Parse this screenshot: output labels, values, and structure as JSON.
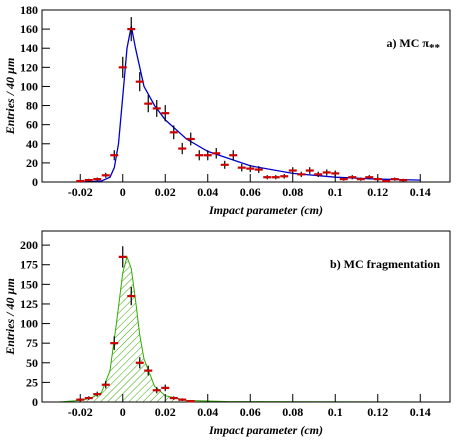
{
  "chart_data": [
    {
      "type": "scatter",
      "annotation": "a) MC π",
      "annotation_sub": "**",
      "xlabel": "Impact parameter (cm)",
      "ylabel": "Entries / 40 µm",
      "xlim": [
        -0.038,
        0.154
      ],
      "ylim": [
        0,
        180
      ],
      "xticks": [
        -0.02,
        0,
        0.02,
        0.04,
        0.06,
        0.08,
        0.1,
        0.12,
        0.14
      ],
      "yticks": [
        0,
        20,
        40,
        60,
        80,
        100,
        120,
        140,
        160,
        180
      ],
      "color": "#cc0000",
      "x": [
        -0.02,
        -0.016,
        -0.012,
        -0.008,
        -0.004,
        0.0,
        0.004,
        0.008,
        0.012,
        0.016,
        0.02,
        0.024,
        0.028,
        0.032,
        0.036,
        0.04,
        0.044,
        0.048,
        0.052,
        0.056,
        0.06,
        0.064,
        0.068,
        0.072,
        0.076,
        0.08,
        0.084,
        0.088,
        0.092,
        0.096,
        0.1,
        0.104,
        0.108,
        0.112,
        0.116,
        0.12,
        0.124,
        0.128,
        0.132
      ],
      "values": [
        1,
        2,
        3,
        7,
        28,
        120,
        160,
        105,
        82,
        77,
        72,
        52,
        35,
        45,
        28,
        28,
        30,
        18,
        28,
        15,
        14,
        13,
        5,
        5,
        6,
        12,
        8,
        12,
        8,
        10,
        9,
        3,
        5,
        3,
        5,
        3,
        1,
        3,
        2
      ],
      "errors": [
        1,
        1.4,
        1.7,
        2.6,
        5.3,
        11,
        12.6,
        10,
        9,
        8.8,
        8.5,
        7.2,
        5.9,
        6.7,
        5.3,
        5.3,
        5.5,
        4.2,
        5.3,
        3.9,
        3.7,
        3.6,
        2.2,
        2.2,
        2.4,
        3.5,
        2.8,
        3.5,
        2.8,
        3.2,
        3,
        1.7,
        2.2,
        1.7,
        2.2,
        1.7,
        1,
        1.7,
        1.4
      ],
      "fit": {
        "style": "line",
        "color": "#0000cc",
        "x": [
          -0.02,
          -0.01,
          -0.006,
          -0.004,
          -0.002,
          0,
          0.002,
          0.004,
          0.006,
          0.01,
          0.015,
          0.02,
          0.03,
          0.04,
          0.06,
          0.08,
          0.1,
          0.12,
          0.14
        ],
        "values": [
          0,
          1,
          5,
          15,
          40,
          90,
          140,
          163,
          140,
          100,
          80,
          65,
          45,
          32,
          17,
          9,
          5,
          3,
          2
        ]
      }
    },
    {
      "type": "scatter",
      "annotation": "b) MC fragmentation",
      "xlabel": "Impact parameter (cm)",
      "ylabel": "Entries / 40 µm",
      "xlim": [
        -0.038,
        0.154
      ],
      "ylim": [
        0,
        218
      ],
      "xticks": [
        -0.02,
        0,
        0.02,
        0.04,
        0.06,
        0.08,
        0.1,
        0.12,
        0.14
      ],
      "yticks": [
        0,
        25,
        50,
        75,
        100,
        125,
        150,
        175,
        200
      ],
      "color": "#cc0000",
      "x": [
        -0.02,
        -0.016,
        -0.012,
        -0.008,
        -0.004,
        0.0,
        0.004,
        0.008,
        0.012,
        0.016,
        0.02,
        0.024,
        0.028,
        0.032
      ],
      "values": [
        3,
        5,
        10,
        22,
        75,
        185,
        135,
        50,
        40,
        15,
        18,
        5,
        3,
        1
      ],
      "errors": [
        1.7,
        2.2,
        3.2,
        4.7,
        8.7,
        13.6,
        11.6,
        7.1,
        6.3,
        3.9,
        4.2,
        2.2,
        1.7,
        1
      ],
      "fit": {
        "style": "hatch",
        "color": "#33aa00",
        "x": [
          -0.03,
          -0.02,
          -0.015,
          -0.01,
          -0.006,
          -0.003,
          0,
          0.002,
          0.004,
          0.006,
          0.008,
          0.01,
          0.015,
          0.02,
          0.03,
          0.05,
          0.15
        ],
        "values": [
          0,
          2,
          5,
          12,
          40,
          100,
          165,
          185,
          170,
          130,
          85,
          55,
          20,
          8,
          2,
          0.5,
          0
        ]
      }
    }
  ]
}
